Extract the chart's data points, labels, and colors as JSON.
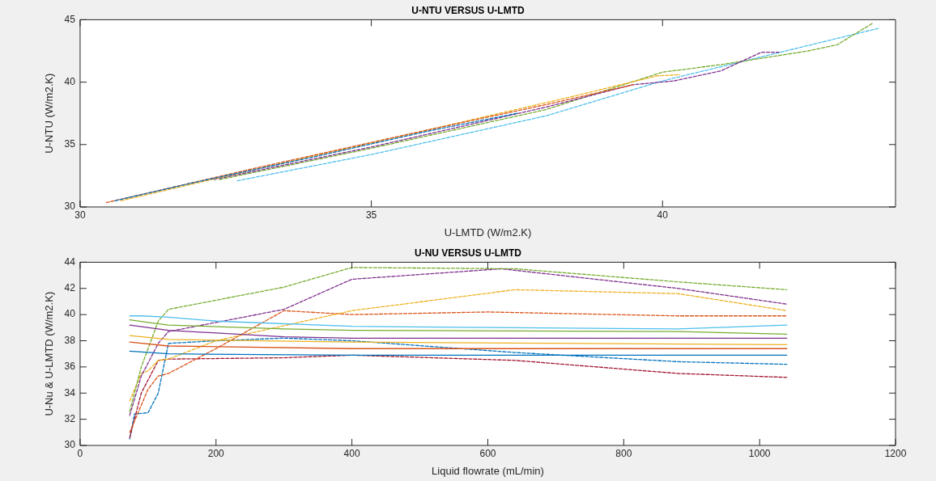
{
  "chart_data": [
    {
      "type": "line",
      "title": "U-NTU VERSUS U-LMTD",
      "xlabel": "U-LMTD (W/m2.K)",
      "ylabel": "U-NTU (W/m2.K)",
      "xlim": [
        30,
        44
      ],
      "xticks": [
        30,
        35,
        40
      ],
      "ylim": [
        30,
        45
      ],
      "yticks": [
        30,
        35,
        40,
        45
      ],
      "grid": false,
      "legend": false,
      "line_style": "dashed",
      "series": [
        {
          "color": "#0072bd",
          "x": [
            30.6,
            32,
            34,
            36,
            37.5
          ],
          "values": [
            30.5,
            32,
            34,
            36.1,
            37.5
          ]
        },
        {
          "color": "#d95319",
          "x": [
            30.45,
            33,
            36,
            38,
            39.5
          ],
          "values": [
            30.35,
            33.1,
            36.2,
            38.2,
            39.8
          ]
        },
        {
          "color": "#edb120",
          "x": [
            30.7,
            33,
            36,
            38.5,
            39.9,
            40.3
          ],
          "values": [
            30.5,
            33,
            36.2,
            38.9,
            40.5,
            40.6
          ]
        },
        {
          "color": "#7e2f8e",
          "x": [
            32.3,
            35,
            38,
            39.5,
            40.2,
            41,
            41.7,
            42
          ],
          "values": [
            32.2,
            34.8,
            38,
            39.8,
            40.1,
            40.9,
            42.4,
            42.4
          ]
        },
        {
          "color": "#77ac30",
          "x": [
            32.4,
            35,
            38,
            40,
            41,
            42.5,
            43,
            43.6
          ],
          "values": [
            32.2,
            34.7,
            37.8,
            40.8,
            41.4,
            42.5,
            43,
            44.7
          ]
        },
        {
          "color": "#4dbeee",
          "x": [
            32.7,
            35,
            38,
            40,
            41.5,
            43.7
          ],
          "values": [
            32.1,
            34.2,
            37.3,
            40.1,
            41.8,
            44.3
          ]
        }
      ]
    },
    {
      "type": "line",
      "title": "U-NU VERSUS U-LMTD",
      "xlabel": "Liquid flowrate (mL/min)",
      "ylabel": "U-Nu & U-LMTD (W/m2.K)",
      "xlim": [
        0,
        1200
      ],
      "xticks": [
        0,
        200,
        400,
        600,
        800,
        1000,
        1200
      ],
      "ylim": [
        30,
        44
      ],
      "yticks": [
        30,
        32,
        34,
        36,
        38,
        40,
        42,
        44
      ],
      "grid": false,
      "legend": false,
      "series": [
        {
          "color": "#4dbeee",
          "line_style": "solid",
          "x": [
            73,
            90,
            130,
            200,
            400,
            640,
            880,
            1040
          ],
          "values": [
            39.9,
            39.9,
            39.8,
            39.5,
            39.1,
            39,
            38.9,
            39.2
          ]
        },
        {
          "color": "#77ac30",
          "line_style": "solid",
          "x": [
            73,
            100,
            130,
            300,
            400,
            880,
            1040
          ],
          "values": [
            39.6,
            39.4,
            39.2,
            38.9,
            38.8,
            38.7,
            38.5
          ]
        },
        {
          "color": "#7e2f8e",
          "line_style": "solid",
          "x": [
            73,
            130,
            300,
            400,
            1040
          ],
          "values": [
            39.2,
            38.8,
            38.3,
            38.2,
            38.2
          ]
        },
        {
          "color": "#edb120",
          "line_style": "solid",
          "x": [
            73,
            130,
            400,
            1040
          ],
          "values": [
            38.4,
            38.1,
            37.9,
            37.7
          ]
        },
        {
          "color": "#d95319",
          "line_style": "solid",
          "x": [
            73,
            130,
            400,
            1040
          ],
          "values": [
            37.9,
            37.6,
            37.4,
            37.4
          ]
        },
        {
          "color": "#0072bd",
          "line_style": "solid",
          "x": [
            73,
            130,
            400,
            1040
          ],
          "values": [
            37.2,
            37,
            36.9,
            36.9
          ]
        },
        {
          "color": "#77ac30",
          "line_style": "dashed",
          "x": [
            73,
            90,
            115,
            130,
            300,
            400,
            640,
            880,
            1040
          ],
          "values": [
            32.6,
            36,
            39.5,
            40.4,
            42.1,
            43.6,
            43.5,
            42.5,
            41.9
          ]
        },
        {
          "color": "#7e2f8e",
          "line_style": "dashed",
          "x": [
            73,
            90,
            115,
            130,
            300,
            400,
            620,
            880,
            1040
          ],
          "values": [
            32.3,
            35.3,
            37.8,
            38.7,
            40.4,
            42.7,
            43.5,
            42,
            40.8
          ]
        },
        {
          "color": "#edb120",
          "line_style": "dashed",
          "x": [
            73,
            90,
            100,
            115,
            130,
            200,
            400,
            640,
            880,
            1040
          ],
          "values": [
            33.4,
            35.5,
            35.7,
            36.5,
            36.6,
            38,
            40.3,
            41.9,
            41.6,
            40.3
          ]
        },
        {
          "color": "#d95319",
          "line_style": "dashed",
          "x": [
            73,
            100,
            115,
            130,
            200,
            300,
            400,
            600,
            880,
            1040
          ],
          "values": [
            31,
            34.3,
            35.3,
            35.5,
            37.4,
            40.3,
            40,
            40.2,
            39.9,
            39.9
          ]
        },
        {
          "color": "#a2142f",
          "line_style": "dashed",
          "x": [
            73,
            90,
            115,
            130,
            300,
            400,
            640,
            880,
            1040
          ],
          "values": [
            30.6,
            34,
            36.5,
            36.6,
            36.7,
            36.9,
            36.5,
            35.5,
            35.2
          ]
        },
        {
          "color": "#0072bd",
          "line_style": "dashed",
          "x": [
            73,
            80,
            100,
            115,
            130,
            200,
            300,
            400,
            640,
            880,
            1040
          ],
          "values": [
            30.5,
            32.4,
            32.5,
            34,
            37.8,
            38,
            38.2,
            38,
            37.1,
            36.4,
            36.2
          ]
        }
      ]
    }
  ]
}
